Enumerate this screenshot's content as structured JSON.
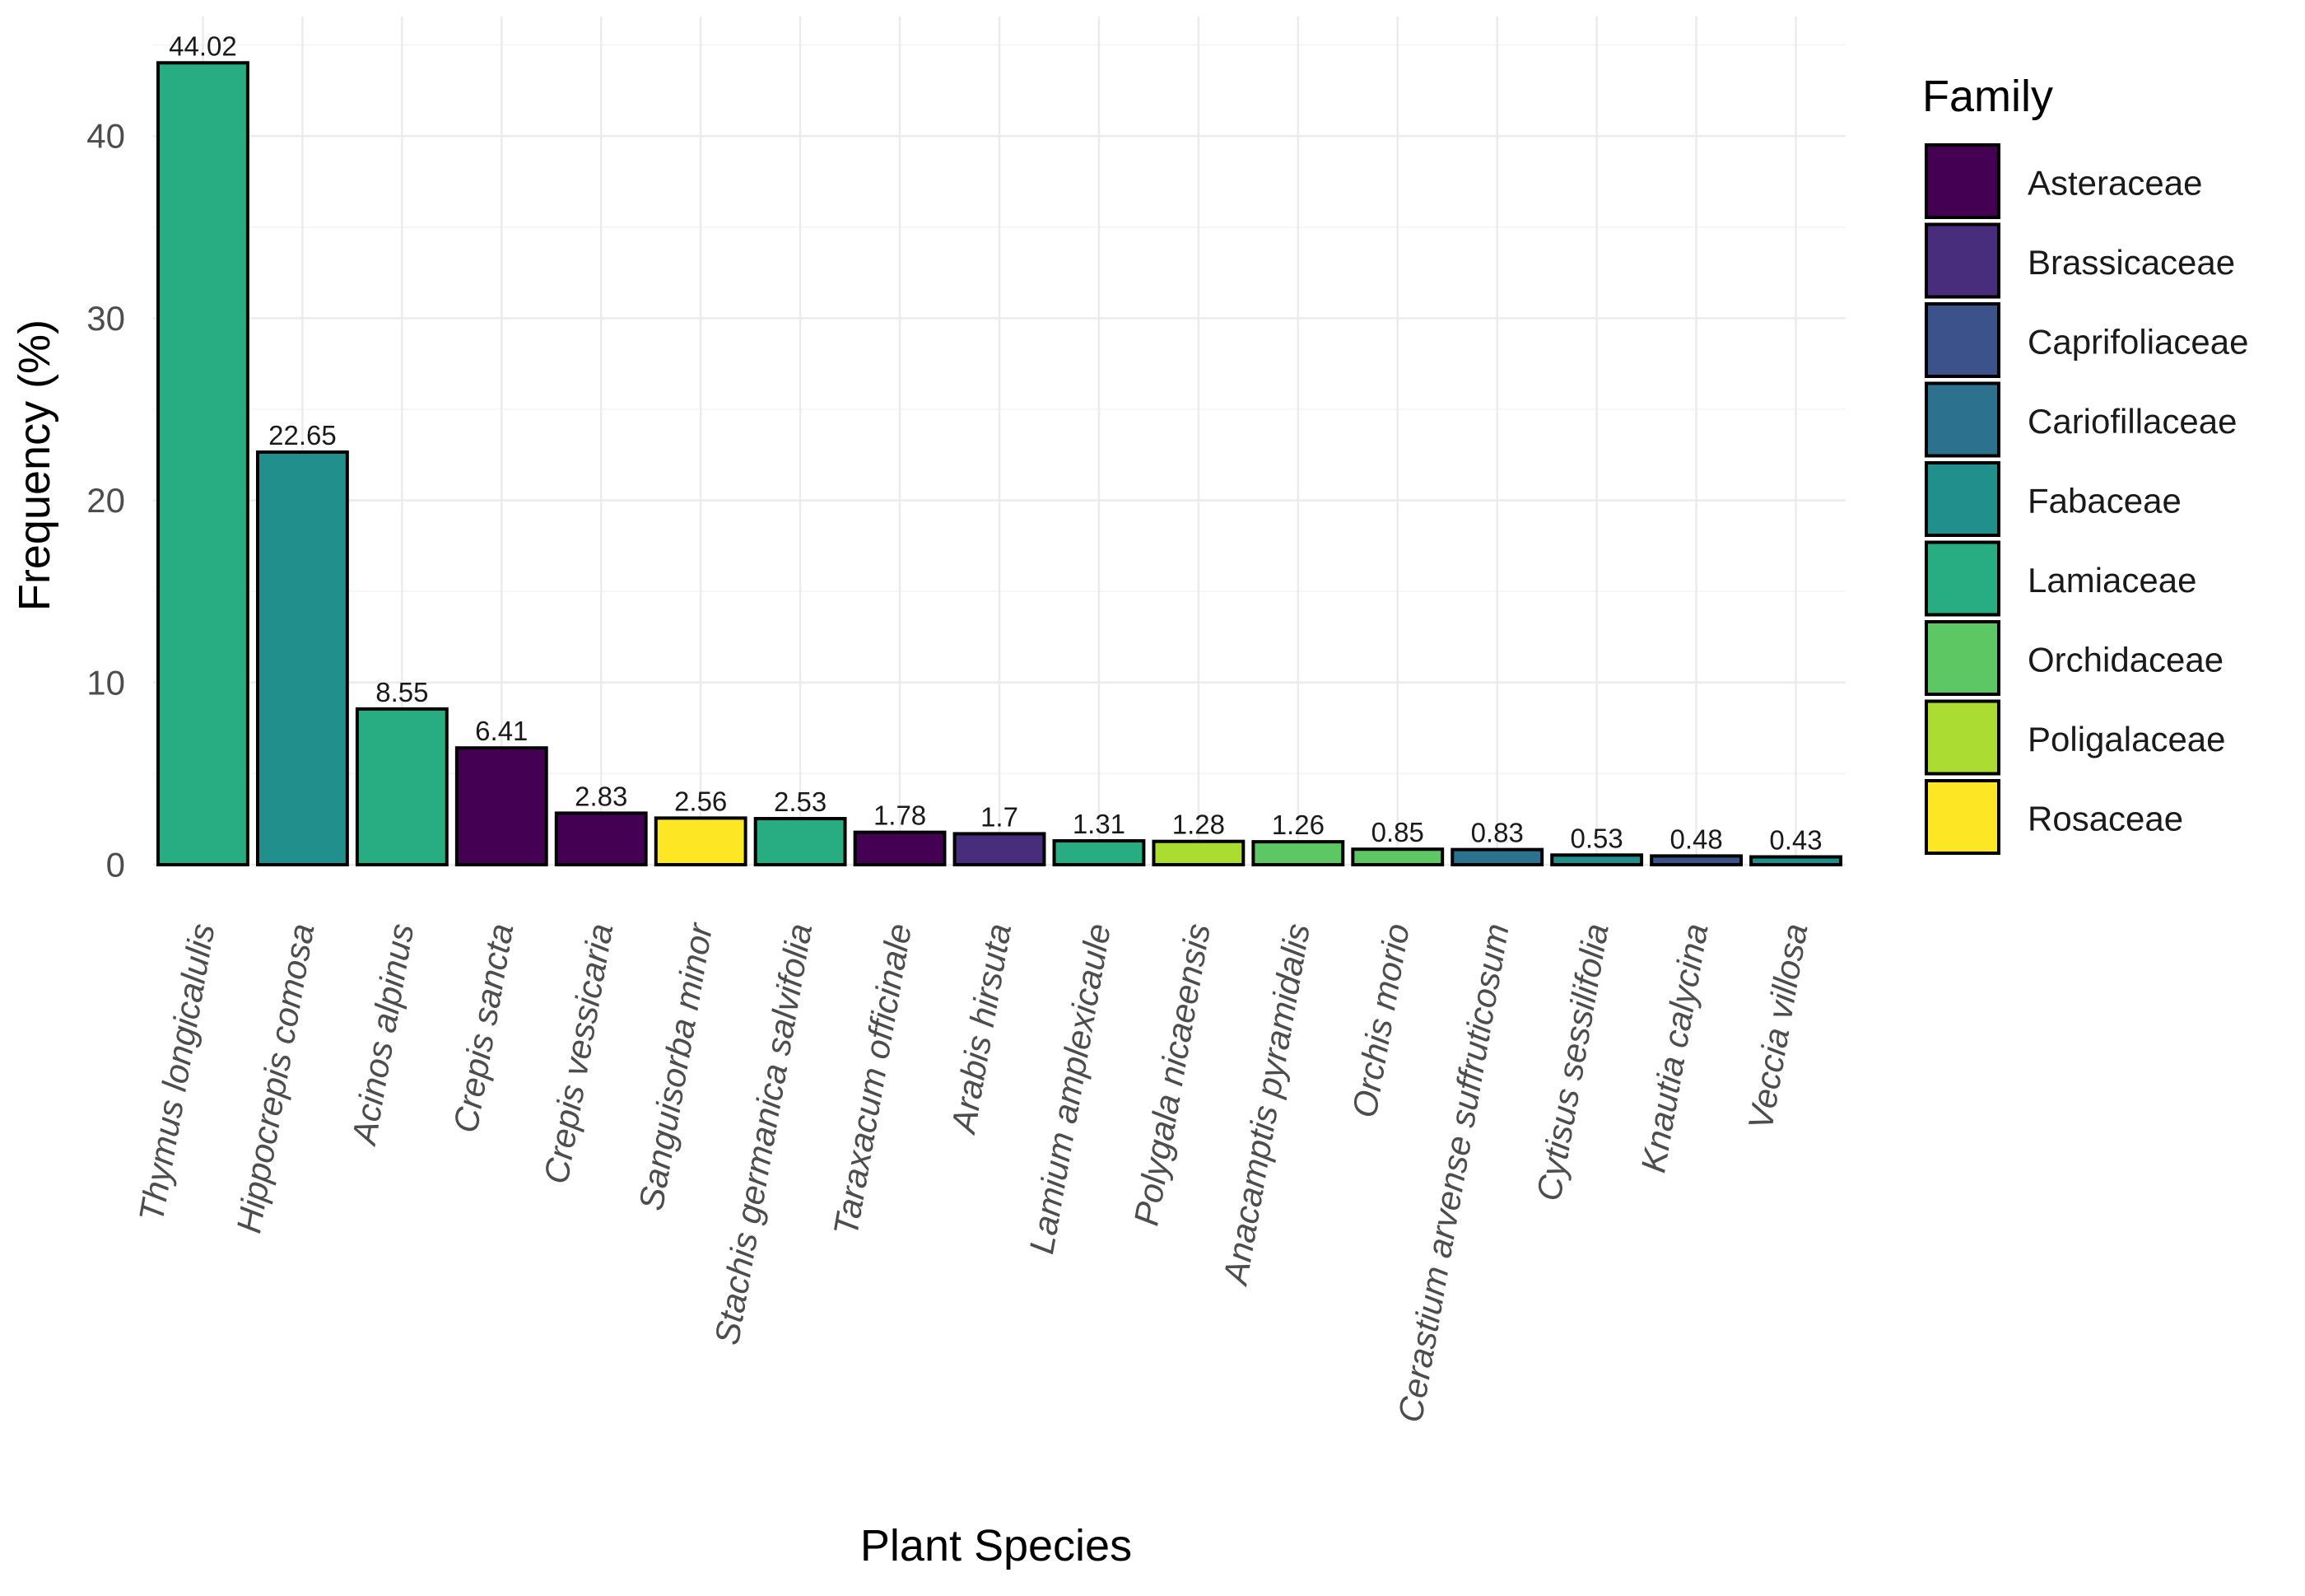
{
  "chart_data": {
    "type": "bar",
    "title": "",
    "xlabel": "Plant Species",
    "ylabel": "Frequency (%)",
    "ylim": [
      0,
      45
    ],
    "yticks": [
      0,
      10,
      20,
      30,
      40
    ],
    "grid": true,
    "legend_title": "Family",
    "legend_position": "right",
    "families": [
      {
        "name": "Asteraceae",
        "color": "#440154"
      },
      {
        "name": "Brassicaceae",
        "color": "#472D7B"
      },
      {
        "name": "Caprifoliaceae",
        "color": "#3B528B"
      },
      {
        "name": "Cariofillaceae",
        "color": "#2C728E"
      },
      {
        "name": "Fabaceae",
        "color": "#21908C"
      },
      {
        "name": "Lamiaceae",
        "color": "#27AD81"
      },
      {
        "name": "Orchidaceae",
        "color": "#5DC863"
      },
      {
        "name": "Poligalaceae",
        "color": "#AADC32"
      },
      {
        "name": "Rosaceae",
        "color": "#FDE725"
      }
    ],
    "categories": [
      "Thymus longicalulis",
      "Hippocrepis comosa",
      "Acinos alpinus",
      "Crepis sancta",
      "Crepis vessicaria",
      "Sanguisorba minor",
      "Stachis germanica salvifolia",
      "Taraxacum officinale",
      "Arabis hirsuta",
      "Lamium amplexicaule",
      "Polygala nicaeensis",
      "Anacamptis pyramidalis",
      "Orchis morio",
      "Cerastium arvense suffruticosum",
      "Cytisus sessilifolia",
      "Knautia calycina",
      "Veccia villosa"
    ],
    "values": [
      44.02,
      22.65,
      8.55,
      6.41,
      2.83,
      2.56,
      2.53,
      1.78,
      1.7,
      1.31,
      1.28,
      1.26,
      0.85,
      0.83,
      0.53,
      0.48,
      0.43
    ],
    "value_labels": [
      "44.02",
      "22.65",
      "8.55",
      "6.41",
      "2.83",
      "2.56",
      "2.53",
      "1.78",
      "1.7",
      "1.31",
      "1.28",
      "1.26",
      "0.85",
      "0.83",
      "0.53",
      "0.48",
      "0.43"
    ],
    "bar_family": [
      "Lamiaceae",
      "Fabaceae",
      "Lamiaceae",
      "Asteraceae",
      "Asteraceae",
      "Rosaceae",
      "Lamiaceae",
      "Asteraceae",
      "Brassicaceae",
      "Lamiaceae",
      "Poligalaceae",
      "Orchidaceae",
      "Orchidaceae",
      "Cariofillaceae",
      "Fabaceae",
      "Caprifoliaceae",
      "Fabaceae"
    ]
  }
}
